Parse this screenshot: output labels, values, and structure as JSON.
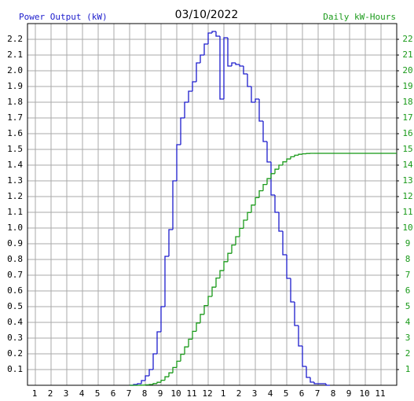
{
  "chart_data": {
    "type": "step",
    "title": "03/10/2022",
    "y_label": "Power Output (kW)",
    "y2_label": "Daily kW-Hours",
    "grid": true,
    "xlim": [
      0.5,
      24
    ],
    "xticks": [
      1,
      2,
      3,
      4,
      5,
      6,
      7,
      8,
      9,
      10,
      11,
      12,
      {
        "value": 13,
        "label": "1"
      },
      {
        "value": 14,
        "label": "2"
      },
      {
        "value": 15,
        "label": "3"
      },
      {
        "value": 16,
        "label": "4"
      },
      {
        "value": 17,
        "label": "5"
      },
      {
        "value": 18,
        "label": "6"
      },
      {
        "value": 19,
        "label": "7"
      },
      {
        "value": 20,
        "label": "8"
      },
      {
        "value": 21,
        "label": "9"
      },
      {
        "value": 22,
        "label": "10"
      },
      {
        "value": 23,
        "label": "11"
      }
    ],
    "ylim": [
      0,
      2.3
    ],
    "yticks": [
      0.1,
      0.2,
      0.3,
      0.4,
      0.5,
      0.6,
      0.7,
      0.8,
      0.9,
      {
        "value": 1,
        "label": "1.0"
      },
      1.1,
      1.2,
      1.3,
      1.4,
      1.5,
      1.6,
      1.7,
      1.8,
      1.9,
      {
        "value": 2,
        "label": "2.0"
      },
      2.1,
      2.2
    ],
    "y2lim": [
      0,
      23
    ],
    "y2ticks": [
      1,
      2,
      3,
      4,
      5,
      6,
      7,
      8,
      9,
      10,
      11,
      12,
      13,
      14,
      15,
      16,
      17,
      18,
      19,
      20,
      21,
      22
    ],
    "x": [
      7,
      7.25,
      7.5,
      7.75,
      8,
      8.25,
      8.5,
      8.75,
      9,
      9.25,
      9.5,
      9.75,
      10,
      10.25,
      10.5,
      10.75,
      11,
      11.25,
      11.5,
      11.75,
      12,
      12.25,
      12.5,
      12.75,
      13,
      13.25,
      13.5,
      13.75,
      14,
      14.25,
      14.5,
      14.75,
      15,
      15.25,
      15.5,
      15.75,
      16,
      16.25,
      16.5,
      16.75,
      17,
      17.25,
      17.5,
      17.75,
      18,
      18.25,
      18.5,
      18.75,
      19,
      19.25,
      19.5,
      19.75,
      20,
      20.25,
      20.5,
      20.75,
      21,
      21.25,
      21.5,
      21.75,
      22,
      22.25,
      22.5,
      22.75,
      23,
      23.25,
      23.5,
      23.75,
      24
    ],
    "series": [
      {
        "color": "#1c1ccc",
        "axis": "y",
        "values": [
          0,
          0.005,
          0.01,
          0.03,
          0.06,
          0.1,
          0.2,
          0.34,
          0.5,
          0.82,
          0.99,
          1.3,
          1.53,
          1.7,
          1.8,
          1.87,
          1.93,
          2.05,
          2.1,
          2.17,
          2.24,
          2.25,
          2.22,
          1.82,
          2.21,
          2.03,
          2.05,
          2.04,
          2.03,
          1.98,
          1.9,
          1.8,
          1.82,
          1.68,
          1.55,
          1.42,
          1.21,
          1.1,
          0.98,
          0.83,
          0.68,
          0.53,
          0.38,
          0.25,
          0.12,
          0.05,
          0.02,
          0.01,
          0.01,
          0.01,
          0,
          null,
          null,
          null,
          null,
          null,
          null,
          null,
          null,
          null,
          null,
          null,
          null,
          null,
          null,
          null,
          null,
          null,
          null
        ]
      },
      {
        "color": "#1a9a1a",
        "axis": "y2",
        "values": [
          0,
          0,
          0,
          0.01,
          0.03,
          0.05,
          0.11,
          0.19,
          0.32,
          0.54,
          0.79,
          1.13,
          1.53,
          1.97,
          2.44,
          2.93,
          3.43,
          3.96,
          4.51,
          5.07,
          5.65,
          6.24,
          6.82,
          7.29,
          7.86,
          8.39,
          8.92,
          9.45,
          9.98,
          10.5,
          10.99,
          11.46,
          11.93,
          12.37,
          12.77,
          13.14,
          13.46,
          13.74,
          14.0,
          14.21,
          14.39,
          14.53,
          14.63,
          14.69,
          14.72,
          14.74,
          14.75,
          14.75,
          14.75,
          14.75,
          14.75,
          14.75,
          14.75,
          14.75,
          14.75,
          14.75,
          14.75,
          14.75,
          14.75,
          14.75,
          14.75,
          14.75,
          14.75,
          14.75,
          14.75,
          14.75,
          14.75,
          14.75,
          14.75
        ]
      }
    ]
  }
}
